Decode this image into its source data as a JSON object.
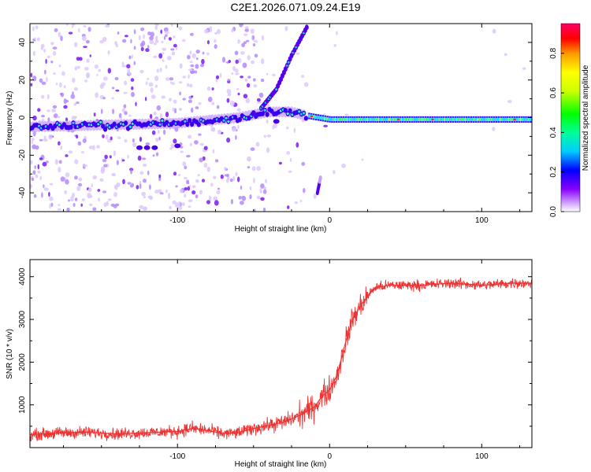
{
  "title": "C2E1.2026.071.09.24.E19",
  "chart_data": [
    {
      "type": "heatmap",
      "name": "spectrogram",
      "xlabel": "Height of straight line (km)",
      "ylabel": "Frequency (Hz)",
      "xlim": [
        -197,
        133
      ],
      "ylim": [
        -50,
        50
      ],
      "xticks": [
        -100,
        0,
        100
      ],
      "yticks": [
        -40,
        -20,
        0,
        20,
        40
      ],
      "colorbar": {
        "label": "Normalized spectral amplitude",
        "range": [
          0,
          0.95
        ],
        "ticks": [
          0.0,
          0.2,
          0.4,
          0.6,
          0.8
        ],
        "tick_labels": [
          "0.0",
          "0.2",
          "0.4",
          "0.6",
          "0.8"
        ]
      },
      "features": [
        {
          "description": "main tone",
          "x": [
            -197,
            -150,
            -100,
            -60,
            -40,
            -25,
            -15,
            0,
            50,
            100,
            133
          ],
          "freq": [
            -5,
            -4,
            -3,
            0,
            3,
            3,
            1,
            -1,
            -1,
            -1,
            -1
          ]
        },
        {
          "description": "rising branch",
          "x": [
            -45,
            -35,
            -25,
            -15
          ],
          "freq": [
            5,
            15,
            33,
            48
          ]
        },
        {
          "description": "falling branch",
          "x": [
            -8,
            -6
          ],
          "freq": [
            -40,
            -32
          ]
        }
      ]
    },
    {
      "type": "line",
      "name": "snr",
      "xlabel": "Height of straight line (km)",
      "ylabel": "SNR (10 * v/v)",
      "xlim": [
        -197,
        133
      ],
      "ylim": [
        0,
        4400
      ],
      "xticks": [
        -100,
        0,
        100
      ],
      "yticks": [
        1000,
        2000,
        3000,
        4000
      ],
      "color": "#ee3333",
      "series": [
        {
          "name": "SNR",
          "x": [
            -197,
            -180,
            -160,
            -140,
            -120,
            -100,
            -90,
            -80,
            -70,
            -60,
            -50,
            -40,
            -30,
            -20,
            -10,
            -5,
            0,
            5,
            10,
            15,
            20,
            25,
            30,
            40,
            50,
            60,
            80,
            100,
            120,
            133
          ],
          "y": [
            300,
            340,
            360,
            320,
            350,
            380,
            450,
            400,
            330,
            350,
            450,
            520,
            600,
            750,
            950,
            1200,
            1350,
            1700,
            2400,
            3000,
            3300,
            3550,
            3750,
            3800,
            3800,
            3800,
            3850,
            3800,
            3850,
            3850
          ]
        }
      ]
    }
  ]
}
